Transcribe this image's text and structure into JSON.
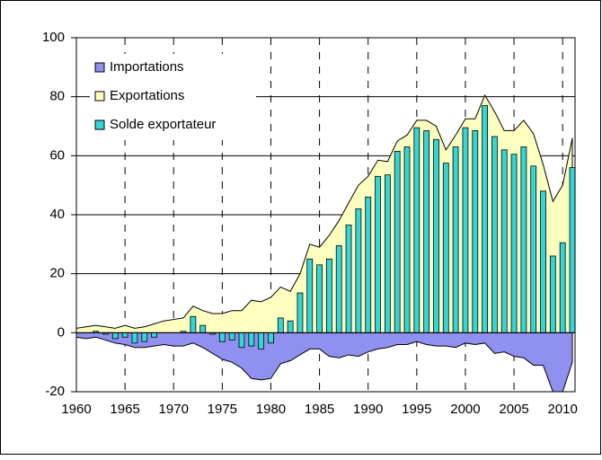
{
  "chart_data": {
    "type": "area-bar",
    "x": [
      1960,
      1961,
      1962,
      1963,
      1964,
      1965,
      1966,
      1967,
      1968,
      1969,
      1970,
      1971,
      1972,
      1973,
      1974,
      1975,
      1976,
      1977,
      1978,
      1979,
      1980,
      1981,
      1982,
      1983,
      1984,
      1985,
      1986,
      1987,
      1988,
      1989,
      1990,
      1991,
      1992,
      1993,
      1994,
      1995,
      1996,
      1997,
      1998,
      1999,
      2000,
      2001,
      2002,
      2003,
      2004,
      2005,
      2006,
      2007,
      2008,
      2009,
      2010,
      2011
    ],
    "series": [
      {
        "name": "Importations",
        "kind": "area",
        "color": "#9090f0",
        "values": [
          -1.5,
          -2,
          -1.5,
          -2.5,
          -3.5,
          -4,
          -5,
          -5,
          -4.5,
          -4,
          -4.5,
          -4.5,
          -3.5,
          -5,
          -7,
          -9,
          -10,
          -12,
          -15.5,
          -16,
          -15.5,
          -10.5,
          -9.5,
          -7.5,
          -5.5,
          -5.5,
          -8,
          -8.5,
          -7.5,
          -8,
          -6.5,
          -5.5,
          -5,
          -4,
          -4,
          -3,
          -4,
          -4.5,
          -4.5,
          -5,
          -3.5,
          -4,
          -3.5,
          -7,
          -6.5,
          -8,
          -8.5,
          -11,
          -11,
          -20,
          -20,
          -10
        ]
      },
      {
        "name": "Exportations",
        "kind": "area",
        "color": "#ffffc0",
        "values": [
          1.5,
          2,
          2.5,
          2,
          1.5,
          2.5,
          1.5,
          2,
          3,
          4,
          4.5,
          5,
          9,
          7.5,
          6.5,
          6.5,
          7.5,
          7.5,
          11,
          10.5,
          12,
          15.5,
          14,
          20,
          30,
          29,
          33,
          38,
          44,
          50,
          53,
          58.5,
          58,
          65,
          67,
          72,
          72,
          70,
          62,
          67,
          72.5,
          72.5,
          80.5,
          75,
          68.5,
          68.5,
          72,
          67.5,
          57,
          44.5,
          50,
          66
        ]
      },
      {
        "name": "Solde exportateur",
        "kind": "bar",
        "color": "#33d6d6",
        "values": [
          0,
          0,
          0.5,
          -0.5,
          -2,
          -1.5,
          -3.5,
          -3,
          -1.5,
          0,
          0,
          0.5,
          5.5,
          2.5,
          -0.5,
          -3,
          -2.5,
          -5,
          -4.5,
          -5.5,
          -3.5,
          5,
          4,
          13.5,
          25,
          23,
          25,
          29.5,
          36.5,
          42,
          46,
          53,
          53.5,
          61.5,
          63,
          69.5,
          68.5,
          65.5,
          57.5,
          63,
          69.5,
          68.5,
          77,
          66.5,
          62,
          60.5,
          63,
          56.5,
          48,
          26,
          30.5,
          56
        ]
      }
    ],
    "xlim": [
      1960,
      2011
    ],
    "xticks": [
      1960,
      1965,
      1970,
      1975,
      1980,
      1985,
      1990,
      1995,
      2000,
      2005,
      2010
    ],
    "ylim": [
      -20,
      100
    ],
    "yticks": [
      -20,
      0,
      20,
      40,
      60,
      80,
      100
    ],
    "grid": true,
    "legend": "top-left"
  }
}
